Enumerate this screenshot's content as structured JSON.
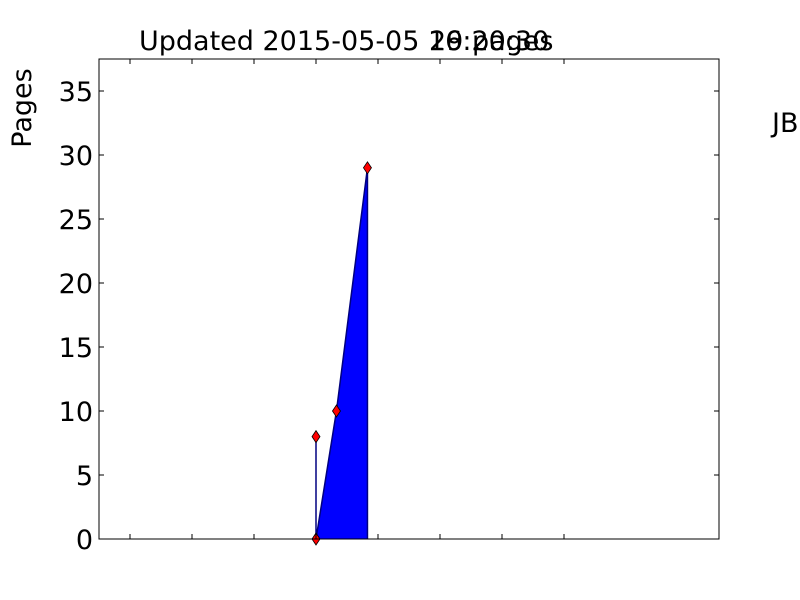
{
  "chart_data": {
    "type": "area",
    "title_left": "Updated 2015-05-05 16:20:30",
    "title_right": "29 pages",
    "ylabel": "Pages",
    "side_label": "JB",
    "xlim": [
      0,
      10
    ],
    "ylim": [
      0,
      37.5
    ],
    "yticks": [
      0,
      5,
      10,
      15,
      20,
      25,
      30,
      35
    ],
    "xticks": [
      0.5,
      1.5,
      2.5,
      3.5,
      4.5,
      5.5,
      6.5,
      7.5
    ],
    "points": [
      {
        "x": 3.5,
        "y": 8
      },
      {
        "x": 3.5,
        "y": 0
      },
      {
        "x": 3.83,
        "y": 10
      },
      {
        "x": 4.33,
        "y": 29
      }
    ],
    "colors": {
      "fill": "#0000ff",
      "line": "#000080",
      "marker": "#ff0000"
    }
  }
}
